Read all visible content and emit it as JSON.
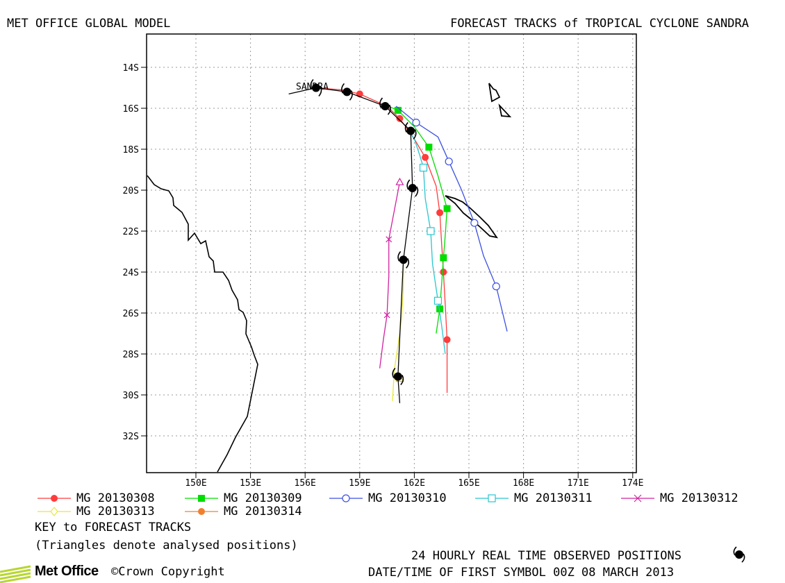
{
  "header": {
    "left": "MET OFFICE GLOBAL MODEL",
    "right": "FORECAST TRACKS of TROPICAL CYCLONE SANDRA"
  },
  "map": {
    "storm_label": "SANDRA",
    "lat_ticks": [
      "14S",
      "16S",
      "18S",
      "20S",
      "22S",
      "24S",
      "26S",
      "28S",
      "30S",
      "32S"
    ],
    "lon_ticks": [
      "150E",
      "153E",
      "156E",
      "159E",
      "162E",
      "165E",
      "168E",
      "171E",
      "174E"
    ],
    "grid": true,
    "colors": {
      "coast": "#000000",
      "grid": "#9a9a9a",
      "observed": "#000000"
    }
  },
  "observed_track": [
    {
      "lon": 156.6,
      "lat": -15.0
    },
    {
      "lon": 158.3,
      "lat": -15.2
    },
    {
      "lon": 160.4,
      "lat": -15.9
    },
    {
      "lon": 161.8,
      "lat": -17.1
    },
    {
      "lon": 161.9,
      "lat": -19.9
    },
    {
      "lon": 161.4,
      "lat": -23.4
    },
    {
      "lon": 161.1,
      "lat": -29.1
    }
  ],
  "forecast_tracks": [
    {
      "name": "MG 20130308",
      "color": "#ff3b3b",
      "marker": "circle-filled",
      "points": [
        [
          156.6,
          -15.0
        ],
        [
          158.0,
          -15.1
        ],
        [
          159.0,
          -15.3
        ],
        [
          160.5,
          -15.9
        ],
        [
          161.2,
          -16.5
        ],
        [
          162.0,
          -17.5
        ],
        [
          162.6,
          -18.4
        ],
        [
          163.2,
          -19.8
        ],
        [
          163.4,
          -21.1
        ],
        [
          163.5,
          -22.6
        ],
        [
          163.6,
          -24.0
        ],
        [
          163.7,
          -25.6
        ],
        [
          163.8,
          -27.3
        ],
        [
          163.8,
          -28.8
        ],
        [
          163.8,
          -29.9
        ]
      ],
      "markers": [
        [
          159.0,
          -15.3
        ],
        [
          161.2,
          -16.5
        ],
        [
          162.6,
          -18.4
        ],
        [
          163.4,
          -21.1
        ],
        [
          163.6,
          -24.0
        ],
        [
          163.8,
          -27.3
        ]
      ]
    },
    {
      "name": "MG 20130309",
      "color": "#00dd00",
      "marker": "square-filled",
      "points": [
        [
          160.3,
          -15.8
        ],
        [
          161.1,
          -16.1
        ],
        [
          162.0,
          -16.9
        ],
        [
          162.8,
          -17.9
        ],
        [
          163.3,
          -19.3
        ],
        [
          163.8,
          -20.9
        ],
        [
          163.7,
          -22.2
        ],
        [
          163.6,
          -23.3
        ],
        [
          163.5,
          -24.6
        ],
        [
          163.4,
          -25.8
        ],
        [
          163.2,
          -27.0
        ]
      ],
      "markers": [
        [
          161.1,
          -16.1
        ],
        [
          162.8,
          -17.9
        ],
        [
          163.8,
          -20.9
        ],
        [
          163.6,
          -23.3
        ],
        [
          163.4,
          -25.8
        ]
      ]
    },
    {
      "name": "MG 20130310",
      "color": "#3c4fe0",
      "marker": "circle-open",
      "points": [
        [
          161.0,
          -15.9
        ],
        [
          162.1,
          -16.7
        ],
        [
          163.3,
          -17.4
        ],
        [
          163.9,
          -18.6
        ],
        [
          164.6,
          -20.0
        ],
        [
          165.3,
          -21.6
        ],
        [
          165.8,
          -23.2
        ],
        [
          166.5,
          -24.7
        ],
        [
          166.8,
          -25.8
        ],
        [
          167.1,
          -26.9
        ]
      ],
      "markers": [
        [
          162.1,
          -16.7
        ],
        [
          163.9,
          -18.6
        ],
        [
          165.3,
          -21.6
        ],
        [
          166.5,
          -24.7
        ]
      ]
    },
    {
      "name": "MG 20130311",
      "color": "#27c6d0",
      "marker": "square-open",
      "points": [
        [
          161.5,
          -16.8
        ],
        [
          162.0,
          -17.5
        ],
        [
          162.3,
          -18.3
        ],
        [
          162.5,
          -18.9
        ],
        [
          162.6,
          -20.4
        ],
        [
          162.9,
          -22.0
        ],
        [
          163.0,
          -23.6
        ],
        [
          163.3,
          -25.4
        ],
        [
          163.5,
          -26.6
        ],
        [
          163.7,
          -28.0
        ]
      ],
      "markers": [
        [
          162.5,
          -18.9
        ],
        [
          162.9,
          -22.0
        ],
        [
          163.3,
          -25.4
        ]
      ]
    },
    {
      "name": "MG 20130312",
      "color": "#d020a0",
      "marker": "cross",
      "points": [
        [
          161.2,
          -19.6
        ],
        [
          160.9,
          -21.0
        ],
        [
          160.6,
          -22.4
        ],
        [
          160.6,
          -24.2
        ],
        [
          160.5,
          -26.1
        ],
        [
          160.3,
          -27.3
        ],
        [
          160.1,
          -28.7
        ]
      ],
      "markers": [
        [
          160.6,
          -22.4
        ],
        [
          160.5,
          -26.1
        ]
      ]
    },
    {
      "name": "MG 20130313",
      "color": "#e8e83a",
      "marker": "diamond-open",
      "points": [
        [
          161.4,
          -23.3
        ],
        [
          161.4,
          -24.8
        ],
        [
          161.3,
          -26.3
        ],
        [
          161.1,
          -27.6
        ],
        [
          160.9,
          -28.8
        ],
        [
          160.8,
          -30.3
        ]
      ],
      "markers": []
    },
    {
      "name": "MG 20130314",
      "color": "#f08030",
      "marker": "circle-filled",
      "points": [],
      "markers": []
    }
  ],
  "analysed_triangles": [
    {
      "lon": 161.2,
      "lat": -19.6,
      "color": "#d020a0"
    },
    {
      "lon": 161.2,
      "lat": -29.2,
      "color": "#e0b020"
    }
  ],
  "legend": {
    "items": [
      {
        "label": "MG 20130308",
        "color": "#ff3b3b",
        "marker": "circle-filled"
      },
      {
        "label": "MG 20130309",
        "color": "#00dd00",
        "marker": "square-filled"
      },
      {
        "label": "MG 20130310",
        "color": "#3c4fe0",
        "marker": "circle-open"
      },
      {
        "label": "MG 20130311",
        "color": "#27c6d0",
        "marker": "square-open"
      },
      {
        "label": "MG 20130312",
        "color": "#d020a0",
        "marker": "cross"
      },
      {
        "label": "MG 20130313",
        "color": "#e8e83a",
        "marker": "diamond-open"
      },
      {
        "label": "MG 20130314",
        "color": "#f08030",
        "marker": "circle-filled"
      }
    ],
    "key_title": "KEY to FORECAST TRACKS",
    "key_note": "(Triangles denote analysed positions)"
  },
  "footer": {
    "observed_note": "24 HOURLY REAL TIME OBSERVED POSITIONS",
    "first_symbol": "DATE/TIME OF FIRST SYMBOL 00Z 08 MARCH 2013",
    "logo_text": "Met Office",
    "copyright": "©Crown Copyright"
  }
}
